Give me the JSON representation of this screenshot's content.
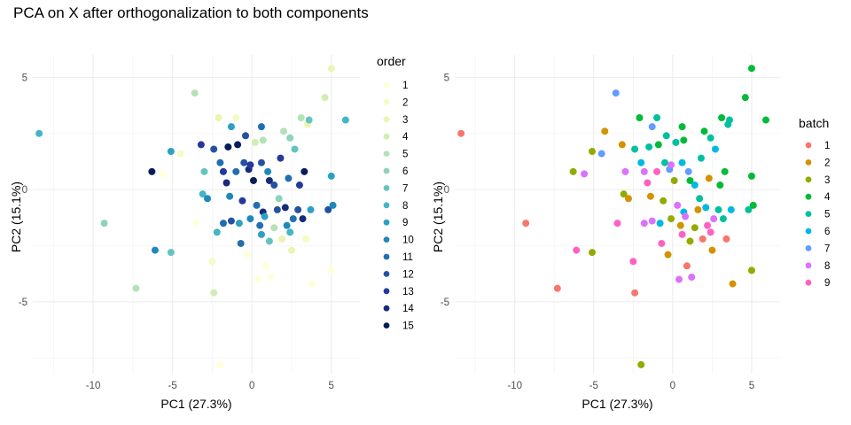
{
  "title": "PCA on X after orthogonalization to both components",
  "chart_data": [
    {
      "type": "scatter",
      "panel": "left",
      "xlabel": "PC1 (27.3%)",
      "ylabel": "PC2 (15.1%)",
      "xlim": [
        -13.8,
        6.8
      ],
      "ylim": [
        -8.2,
        6.0
      ],
      "xticks": [
        -10,
        -5,
        0,
        5
      ],
      "yticks": [
        -5,
        0,
        5
      ],
      "xtick_labels": [
        "-10",
        "-5",
        "0",
        "5"
      ],
      "ytick_labels": [
        "-5",
        "0",
        "5"
      ],
      "grid": true,
      "legend": {
        "title": "order",
        "placement": "right",
        "entries": [
          {
            "label": "1",
            "color": "#ffffd9"
          },
          {
            "label": "2",
            "color": "#f5fbc4"
          },
          {
            "label": "3",
            "color": "#e8f6b1"
          },
          {
            "label": "4",
            "color": "#d2edb3"
          },
          {
            "label": "5",
            "color": "#b5e1b6"
          },
          {
            "label": "6",
            "color": "#8ed2b9"
          },
          {
            "label": "7",
            "color": "#64c3be"
          },
          {
            "label": "8",
            "color": "#41b6c4"
          },
          {
            "label": "9",
            "color": "#2ca1c2"
          },
          {
            "label": "10",
            "color": "#1f88bb"
          },
          {
            "label": "11",
            "color": "#216eb0"
          },
          {
            "label": "12",
            "color": "#2352a2"
          },
          {
            "label": "13",
            "color": "#24399a"
          },
          {
            "label": "14",
            "color": "#172a7b"
          },
          {
            "label": "15",
            "color": "#081d58"
          }
        ]
      },
      "points": [
        [
          -13.4,
          2.5,
          8
        ],
        [
          -9.3,
          -1.5,
          6
        ],
        [
          -7.3,
          -4.4,
          5
        ],
        [
          -6.3,
          0.8,
          15
        ],
        [
          -6.1,
          -2.7,
          10
        ],
        [
          -5.6,
          0.7,
          1
        ],
        [
          -5.1,
          -2.8,
          7
        ],
        [
          -5.1,
          1.7,
          9
        ],
        [
          -4.5,
          1.6,
          2
        ],
        [
          -3.6,
          4.3,
          5
        ],
        [
          -3.5,
          -1.5,
          1
        ],
        [
          -3.2,
          2.0,
          13
        ],
        [
          -3.1,
          -0.2,
          8
        ],
        [
          -3.0,
          0.8,
          7
        ],
        [
          -2.8,
          -0.4,
          10
        ],
        [
          -2.5,
          -3.2,
          2
        ],
        [
          -2.4,
          -4.6,
          4
        ],
        [
          -2.4,
          1.8,
          12
        ],
        [
          -2.2,
          -1.9,
          8
        ],
        [
          -2.1,
          3.2,
          3
        ],
        [
          -2.0,
          -7.8,
          1
        ],
        [
          -2.0,
          1.2,
          11
        ],
        [
          -1.8,
          -1.5,
          11
        ],
        [
          -1.8,
          0.8,
          13
        ],
        [
          -1.6,
          0.3,
          14
        ],
        [
          -1.5,
          1.9,
          15
        ],
        [
          -1.4,
          -0.3,
          10
        ],
        [
          -1.3,
          2.8,
          9
        ],
        [
          -1.3,
          -1.4,
          12
        ],
        [
          -1.0,
          0.8,
          11
        ],
        [
          -1.0,
          3.2,
          2
        ],
        [
          -0.9,
          2.0,
          15
        ],
        [
          -0.8,
          -1.5,
          9
        ],
        [
          -0.7,
          -2.4,
          11
        ],
        [
          -0.6,
          -0.5,
          13
        ],
        [
          -0.5,
          1.2,
          12
        ],
        [
          -0.4,
          2.4,
          12
        ],
        [
          -0.3,
          -2.9,
          1
        ],
        [
          -0.2,
          0.9,
          14
        ],
        [
          -0.1,
          1.1,
          13
        ],
        [
          -0.1,
          -1.3,
          10
        ],
        [
          0.1,
          0.4,
          15
        ],
        [
          0.2,
          2.1,
          4
        ],
        [
          0.3,
          -0.7,
          11
        ],
        [
          0.4,
          -4.0,
          1
        ],
        [
          0.5,
          -1.6,
          11
        ],
        [
          0.6,
          2.8,
          11
        ],
        [
          0.6,
          -2.0,
          9
        ],
        [
          0.6,
          1.2,
          12
        ],
        [
          0.7,
          -1.0,
          14
        ],
        [
          0.7,
          2.2,
          5
        ],
        [
          0.8,
          -1.2,
          9
        ],
        [
          0.9,
          -3.4,
          1
        ],
        [
          1.0,
          0.8,
          10
        ],
        [
          1.1,
          -2.3,
          7
        ],
        [
          1.1,
          0.4,
          14
        ],
        [
          1.2,
          -3.9,
          1
        ],
        [
          1.4,
          -1.7,
          5
        ],
        [
          1.4,
          0.2,
          12
        ],
        [
          1.6,
          -0.9,
          12
        ],
        [
          1.7,
          -0.4,
          6
        ],
        [
          1.8,
          1.4,
          13
        ],
        [
          1.9,
          -2.2,
          3
        ],
        [
          2.0,
          2.6,
          5
        ],
        [
          2.1,
          -0.8,
          14
        ],
        [
          2.2,
          -1.6,
          10
        ],
        [
          2.3,
          0.5,
          11
        ],
        [
          2.4,
          2.3,
          6
        ],
        [
          2.4,
          -1.9,
          8
        ],
        [
          2.5,
          -2.7,
          3
        ],
        [
          2.6,
          -1.3,
          11
        ],
        [
          2.7,
          1.8,
          7
        ],
        [
          2.9,
          -0.9,
          12
        ],
        [
          3.0,
          0.2,
          13
        ],
        [
          3.1,
          3.2,
          5
        ],
        [
          3.2,
          -1.3,
          14
        ],
        [
          3.3,
          0.8,
          15
        ],
        [
          3.4,
          -2.2,
          2
        ],
        [
          3.5,
          2.9,
          3
        ],
        [
          3.6,
          3.1,
          7
        ],
        [
          3.7,
          -0.9,
          9
        ],
        [
          3.8,
          -4.2,
          1
        ],
        [
          4.6,
          4.1,
          4
        ],
        [
          4.8,
          -0.9,
          12
        ],
        [
          5.0,
          0.6,
          9
        ],
        [
          5.0,
          -3.6,
          1
        ],
        [
          5.0,
          5.4,
          3
        ],
        [
          5.1,
          -0.7,
          10
        ],
        [
          5.9,
          3.1,
          8
        ]
      ]
    },
    {
      "type": "scatter",
      "panel": "right",
      "xlabel": "PC1 (27.3%)",
      "ylabel": "PC2 (15.1%)",
      "xlim": [
        -13.8,
        6.8
      ],
      "ylim": [
        -8.2,
        6.0
      ],
      "xticks": [
        -10,
        -5,
        0,
        5
      ],
      "yticks": [
        -5,
        0,
        5
      ],
      "xtick_labels": [
        "-10",
        "-5",
        "0",
        "5"
      ],
      "ytick_labels": [
        "-5",
        "0",
        "5"
      ],
      "grid": true,
      "legend": {
        "title": "batch",
        "placement": "right",
        "entries": [
          {
            "label": "1",
            "color": "#f8766d"
          },
          {
            "label": "2",
            "color": "#d39200"
          },
          {
            "label": "3",
            "color": "#93aa00"
          },
          {
            "label": "4",
            "color": "#00ba38"
          },
          {
            "label": "5",
            "color": "#00c19f"
          },
          {
            "label": "6",
            "color": "#00b9e3"
          },
          {
            "label": "7",
            "color": "#619cff"
          },
          {
            "label": "8",
            "color": "#db72fb"
          },
          {
            "label": "9",
            "color": "#ff61c3"
          }
        ]
      },
      "points": [
        [
          -13.4,
          2.5,
          1
        ],
        [
          -9.3,
          -1.5,
          1
        ],
        [
          -7.3,
          -4.4,
          1
        ],
        [
          -6.3,
          0.8,
          3
        ],
        [
          -6.1,
          -2.7,
          9
        ],
        [
          -5.6,
          0.7,
          8
        ],
        [
          -5.1,
          -2.8,
          3
        ],
        [
          -5.1,
          1.7,
          3
        ],
        [
          -4.5,
          1.6,
          7
        ],
        [
          -4.3,
          2.6,
          2
        ],
        [
          -3.6,
          4.3,
          7
        ],
        [
          -3.5,
          -1.5,
          9
        ],
        [
          -3.2,
          2.0,
          2
        ],
        [
          -3.1,
          -0.2,
          3
        ],
        [
          -3.0,
          0.8,
          8
        ],
        [
          -2.8,
          -0.4,
          2
        ],
        [
          -2.5,
          -3.2,
          9
        ],
        [
          -2.4,
          -4.6,
          1
        ],
        [
          -2.4,
          1.8,
          5
        ],
        [
          -2.1,
          3.2,
          4
        ],
        [
          -2.0,
          -7.8,
          3
        ],
        [
          -2.0,
          1.2,
          6
        ],
        [
          -1.8,
          -1.5,
          8
        ],
        [
          -1.8,
          0.8,
          8
        ],
        [
          -1.6,
          0.3,
          9
        ],
        [
          -1.5,
          1.9,
          5
        ],
        [
          -1.4,
          -0.3,
          2
        ],
        [
          -1.3,
          2.8,
          7
        ],
        [
          -1.3,
          -1.4,
          8
        ],
        [
          -1.0,
          0.8,
          9
        ],
        [
          -1.0,
          3.2,
          5
        ],
        [
          -0.9,
          2.0,
          4
        ],
        [
          -0.8,
          -1.5,
          6
        ],
        [
          -0.7,
          -2.4,
          9
        ],
        [
          -0.6,
          -0.5,
          3
        ],
        [
          -0.5,
          1.2,
          5
        ],
        [
          -0.4,
          2.4,
          5
        ],
        [
          -0.3,
          -2.9,
          2
        ],
        [
          -0.2,
          0.9,
          7
        ],
        [
          -0.1,
          1.1,
          8
        ],
        [
          -0.1,
          -1.3,
          3
        ],
        [
          0.1,
          0.4,
          3
        ],
        [
          0.2,
          2.1,
          5
        ],
        [
          0.3,
          -0.7,
          8
        ],
        [
          0.4,
          -4.0,
          8
        ],
        [
          0.5,
          -1.6,
          2
        ],
        [
          0.6,
          2.8,
          4
        ],
        [
          0.6,
          -2.0,
          9
        ],
        [
          0.6,
          1.2,
          6
        ],
        [
          0.7,
          -1.0,
          6
        ],
        [
          0.7,
          2.2,
          4
        ],
        [
          0.8,
          -1.2,
          8
        ],
        [
          0.9,
          -3.4,
          1
        ],
        [
          1.0,
          0.8,
          7
        ],
        [
          1.1,
          -2.3,
          3
        ],
        [
          1.1,
          0.4,
          4
        ],
        [
          1.2,
          -3.9,
          8
        ],
        [
          1.4,
          -1.7,
          3
        ],
        [
          1.4,
          0.2,
          6
        ],
        [
          1.6,
          -0.9,
          2
        ],
        [
          1.7,
          -0.4,
          5
        ],
        [
          1.8,
          1.4,
          5
        ],
        [
          1.9,
          -2.2,
          1
        ],
        [
          2.0,
          2.6,
          4
        ],
        [
          2.1,
          -0.8,
          6
        ],
        [
          2.2,
          -1.6,
          9
        ],
        [
          2.3,
          0.5,
          2
        ],
        [
          2.4,
          2.3,
          5
        ],
        [
          2.4,
          -1.9,
          9
        ],
        [
          2.5,
          -2.7,
          2
        ],
        [
          2.6,
          -1.3,
          8
        ],
        [
          2.7,
          1.8,
          6
        ],
        [
          2.9,
          -0.9,
          5
        ],
        [
          3.0,
          0.2,
          4
        ],
        [
          3.1,
          3.2,
          4
        ],
        [
          3.2,
          -1.3,
          5
        ],
        [
          3.3,
          0.8,
          4
        ],
        [
          3.4,
          -2.2,
          1
        ],
        [
          3.5,
          2.9,
          5
        ],
        [
          3.6,
          3.1,
          5
        ],
        [
          3.7,
          -0.9,
          6
        ],
        [
          3.8,
          -4.2,
          2
        ],
        [
          4.6,
          4.1,
          4
        ],
        [
          4.8,
          -0.9,
          5
        ],
        [
          5.0,
          0.6,
          4
        ],
        [
          5.0,
          -3.6,
          3
        ],
        [
          5.0,
          5.4,
          4
        ],
        [
          5.1,
          -0.7,
          4
        ],
        [
          5.9,
          3.1,
          4
        ]
      ]
    }
  ]
}
